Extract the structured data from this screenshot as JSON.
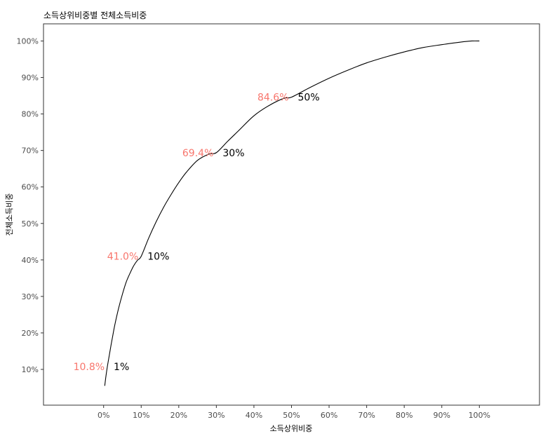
{
  "chart_data": {
    "type": "line",
    "title": "소득상위비중별 전체소득비중",
    "xlabel": "소득상위비중",
    "ylabel": "전체소득비중",
    "xlim": [
      -16,
      116
    ],
    "ylim": [
      0.2,
      104.7
    ],
    "x_ticks": [
      "0%",
      "10%",
      "20%",
      "30%",
      "40%",
      "50%",
      "60%",
      "70%",
      "80%",
      "90%",
      "100%"
    ],
    "y_ticks": [
      "10%",
      "20%",
      "30%",
      "40%",
      "50%",
      "60%",
      "70%",
      "80%",
      "90%",
      "100%"
    ],
    "grid": false,
    "colors": {
      "line": "#000000",
      "annotation_y": "#F8766D",
      "annotation_x": "#000000"
    },
    "series": [
      {
        "x": [
          0.3,
          0.6,
          1,
          1.5,
          2,
          2.5,
          3,
          4,
          5,
          6,
          7,
          8,
          9,
          10,
          12,
          14,
          16,
          18,
          20,
          22,
          25,
          28,
          30,
          33,
          36,
          40,
          44,
          48,
          50,
          55,
          60,
          65,
          70,
          75,
          80,
          85,
          90,
          95,
          98,
          100
        ],
        "y": [
          5.5,
          8,
          10.8,
          13.8,
          16.8,
          19.6,
          22.3,
          26.8,
          30.6,
          33.9,
          36.3,
          38.4,
          39.9,
          41.0,
          46.0,
          50.5,
          54.5,
          58.0,
          61.2,
          64.0,
          67.3,
          69.0,
          69.4,
          72.5,
          75.5,
          79.5,
          82.3,
          84.3,
          84.6,
          87.3,
          89.8,
          92.0,
          94.0,
          95.6,
          97.0,
          98.2,
          99.0,
          99.7,
          100.0,
          100.0
        ]
      }
    ],
    "annotations": [
      {
        "x": 1,
        "y": 10.8,
        "x_label": "1%",
        "y_label": "10.8%"
      },
      {
        "x": 10,
        "y": 41.0,
        "x_label": "10%",
        "y_label": "41.0%"
      },
      {
        "x": 30,
        "y": 69.4,
        "x_label": "30%",
        "y_label": "69.4%"
      },
      {
        "x": 50,
        "y": 84.6,
        "x_label": "50%",
        "y_label": "84.6%"
      }
    ]
  }
}
